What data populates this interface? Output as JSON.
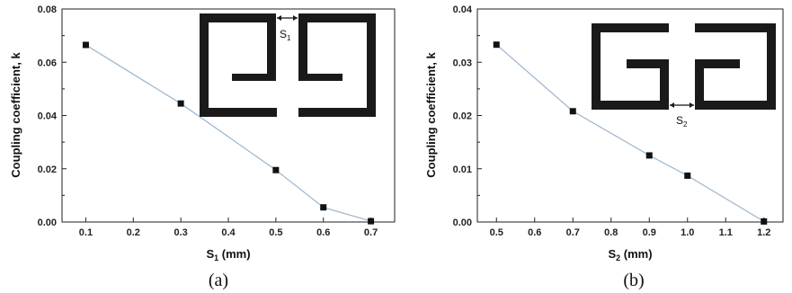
{
  "chart_data": [
    {
      "type": "line",
      "panel_label": "(a)",
      "xlabel": "S",
      "xlabel_sub": "1",
      "xlabel_unit": "(mm)",
      "ylabel": "Coupling coefficient, k",
      "xlim": [
        0.05,
        0.75
      ],
      "ylim": [
        0,
        0.08
      ],
      "xticks": [
        "0.1",
        "0.2",
        "0.3",
        "0.4",
        "0.5",
        "0.6",
        "0.7"
      ],
      "yticks": [
        "0.00",
        "0.02",
        "0.04",
        "0.06",
        "0.08"
      ],
      "series": [
        {
          "x": [
            0.1,
            0.3,
            0.5,
            0.6,
            0.7
          ],
          "y": [
            0.0665,
            0.0445,
            0.0195,
            0.0055,
            0.0003
          ]
        }
      ],
      "inset_label": "S",
      "inset_label_sub": "1",
      "colors": {
        "line": "#9ab4cc",
        "marker": "#111111"
      }
    },
    {
      "type": "line",
      "panel_label": "(b)",
      "xlabel": "S",
      "xlabel_sub": "2",
      "xlabel_unit": "(mm)",
      "ylabel": "Coupling coefficient, k",
      "xlim": [
        0.45,
        1.25
      ],
      "ylim": [
        0,
        0.04
      ],
      "xticks": [
        "0.5",
        "0.6",
        "0.7",
        "0.8",
        "0.9",
        "1.0",
        "1.1",
        "1.2"
      ],
      "yticks": [
        "0.00",
        "0.01",
        "0.02",
        "0.03",
        "0.04"
      ],
      "series": [
        {
          "x": [
            0.5,
            0.7,
            0.9,
            1.0,
            1.2
          ],
          "y": [
            0.0333,
            0.0208,
            0.0125,
            0.0087,
            0.0001
          ]
        }
      ],
      "inset_label": "S",
      "inset_label_sub": "2",
      "colors": {
        "line": "#9ab4cc",
        "marker": "#111111"
      }
    }
  ]
}
